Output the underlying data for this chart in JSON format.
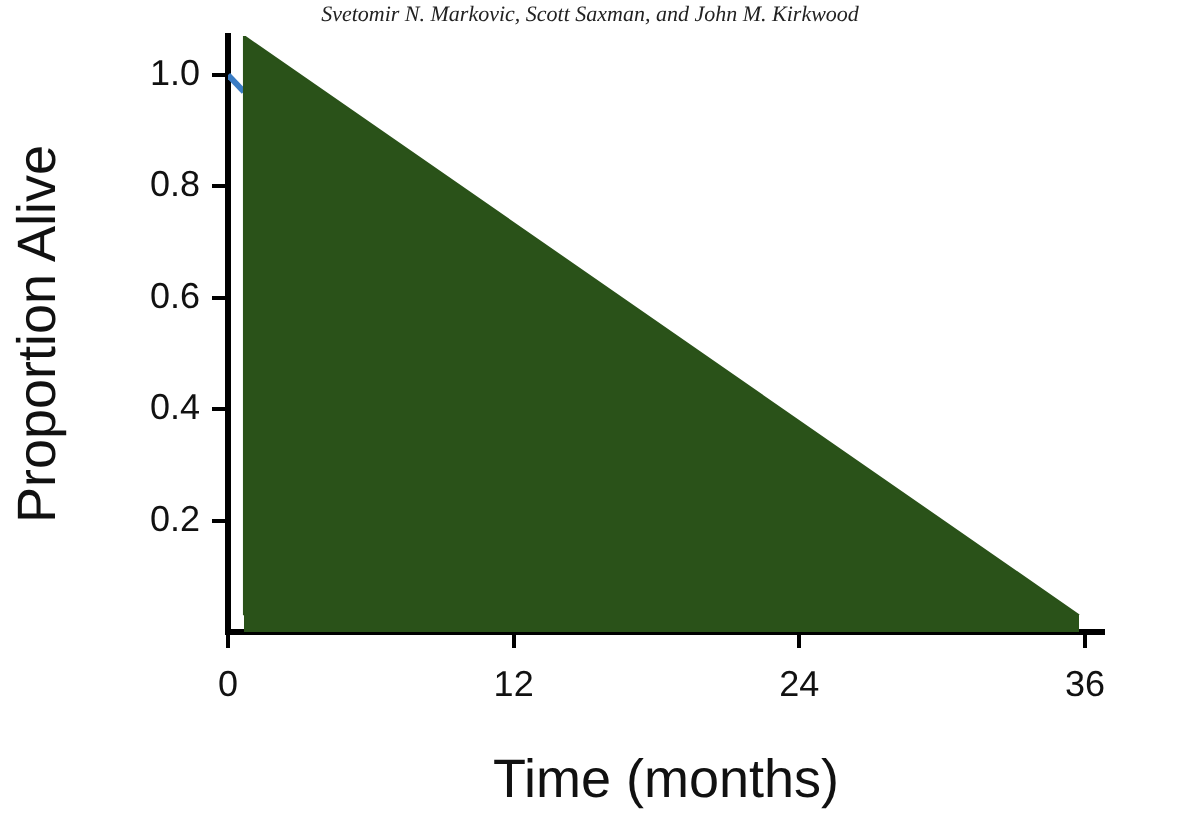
{
  "chart_data": {
    "type": "area",
    "xlabel": "Time (months)",
    "ylabel": "Proportion Alive",
    "annotations": [
      "Svetomir N. Markovic, Scott Saxman, and John M. Kirkwood"
    ],
    "xlim": [
      0,
      36.8
    ],
    "xticks": [
      0,
      12,
      24,
      36
    ],
    "ylim": [
      0,
      1.07
    ],
    "yticks": [
      0.2,
      0.4,
      0.6,
      0.8,
      {
        "value": 1,
        "label": "1.0"
      }
    ],
    "grid": false,
    "legend": false,
    "series": [
      {
        "color": "#2a5219",
        "x": [
          0.67,
          0.67,
          35.75
        ],
        "values": [
          0.03,
          1.07,
          0.03
        ]
      },
      {
        "type": "line",
        "color": "#3a7cc4",
        "x": [
          0,
          0.67
        ],
        "values": [
          1.0,
          0.97
        ]
      }
    ]
  }
}
